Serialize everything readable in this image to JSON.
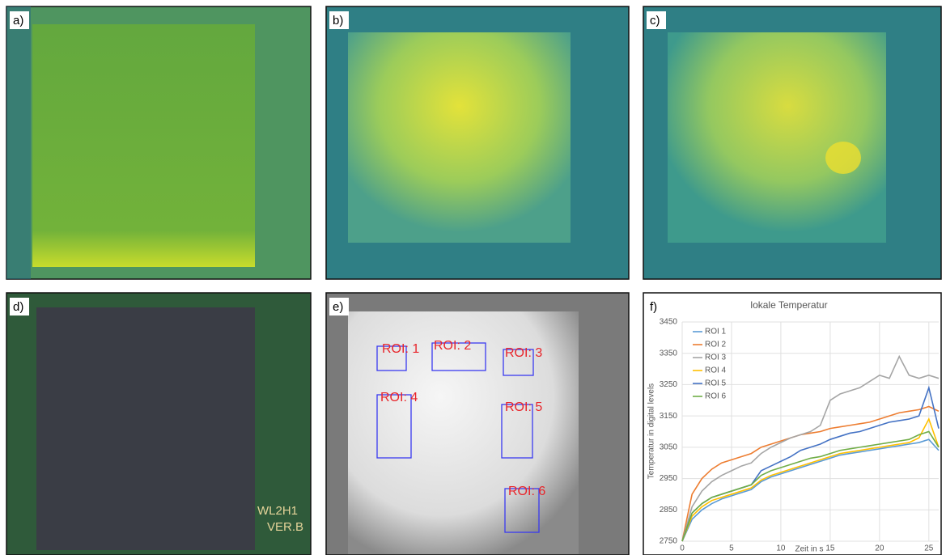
{
  "panels": [
    {
      "label": "a)"
    },
    {
      "label": "b)"
    },
    {
      "label": "c)"
    },
    {
      "label": "d)",
      "texts": [
        "WL2H1",
        "VER.B"
      ]
    },
    {
      "label": "e)",
      "rois": [
        "ROI: 1",
        "ROI: 2",
        "ROI: 3",
        "ROI: 4",
        "ROI: 5",
        "ROI: 6"
      ]
    },
    {
      "label": "f)"
    }
  ],
  "chart_data": {
    "type": "line",
    "title": "lokale Temperatur",
    "x_label": "Zeit in s",
    "y_label": "Temperatur in digital levels",
    "x": [
      0,
      1,
      2,
      3,
      4,
      5,
      6,
      7,
      8,
      9,
      10,
      11,
      12,
      13,
      14,
      15,
      16,
      17,
      18,
      19,
      20,
      21,
      22,
      23,
      24,
      25,
      26
    ],
    "xlim": [
      0,
      26
    ],
    "xticks": [
      0,
      5,
      10,
      15,
      20,
      25
    ],
    "ylim": [
      2750,
      3450
    ],
    "yticks": [
      2750,
      2850,
      2950,
      3050,
      3150,
      3250,
      3350,
      3450
    ],
    "grid": true,
    "legend": "upper left",
    "series": [
      {
        "name": "ROI 1",
        "color": "#5b9bd5",
        "values": [
          2750,
          2820,
          2850,
          2870,
          2885,
          2895,
          2905,
          2915,
          2940,
          2955,
          2965,
          2975,
          2985,
          2995,
          3005,
          3015,
          3025,
          3030,
          3035,
          3040,
          3045,
          3050,
          3055,
          3060,
          3065,
          3075,
          3040
        ]
      },
      {
        "name": "ROI 2",
        "color": "#ed7d31",
        "values": [
          2750,
          2900,
          2950,
          2980,
          3000,
          3010,
          3020,
          3030,
          3050,
          3060,
          3070,
          3080,
          3090,
          3095,
          3100,
          3110,
          3115,
          3120,
          3125,
          3130,
          3140,
          3150,
          3160,
          3165,
          3170,
          3180,
          3165
        ]
      },
      {
        "name": "ROI 3",
        "color": "#a5a5a5",
        "values": [
          2750,
          2860,
          2910,
          2940,
          2960,
          2975,
          2990,
          3000,
          3030,
          3050,
          3065,
          3080,
          3090,
          3100,
          3120,
          3200,
          3220,
          3230,
          3240,
          3260,
          3280,
          3270,
          3340,
          3280,
          3270,
          3280,
          3270
        ]
      },
      {
        "name": "ROI 4",
        "color": "#ffc000",
        "values": [
          2750,
          2830,
          2860,
          2880,
          2890,
          2900,
          2910,
          2920,
          2945,
          2960,
          2970,
          2980,
          2990,
          3000,
          3010,
          3020,
          3030,
          3035,
          3040,
          3045,
          3050,
          3055,
          3060,
          3065,
          3080,
          3140,
          3050
        ]
      },
      {
        "name": "ROI 5",
        "color": "#4472c4",
        "values": [
          2750,
          2840,
          2870,
          2890,
          2900,
          2910,
          2920,
          2930,
          2975,
          2990,
          3005,
          3020,
          3040,
          3050,
          3060,
          3075,
          3085,
          3095,
          3100,
          3110,
          3120,
          3130,
          3135,
          3140,
          3150,
          3240,
          3110
        ]
      },
      {
        "name": "ROI 6",
        "color": "#70ad47",
        "values": [
          2750,
          2840,
          2870,
          2890,
          2900,
          2910,
          2920,
          2930,
          2960,
          2975,
          2985,
          2995,
          3005,
          3015,
          3020,
          3030,
          3040,
          3045,
          3050,
          3055,
          3060,
          3065,
          3070,
          3075,
          3090,
          3100,
          3050
        ]
      }
    ]
  }
}
